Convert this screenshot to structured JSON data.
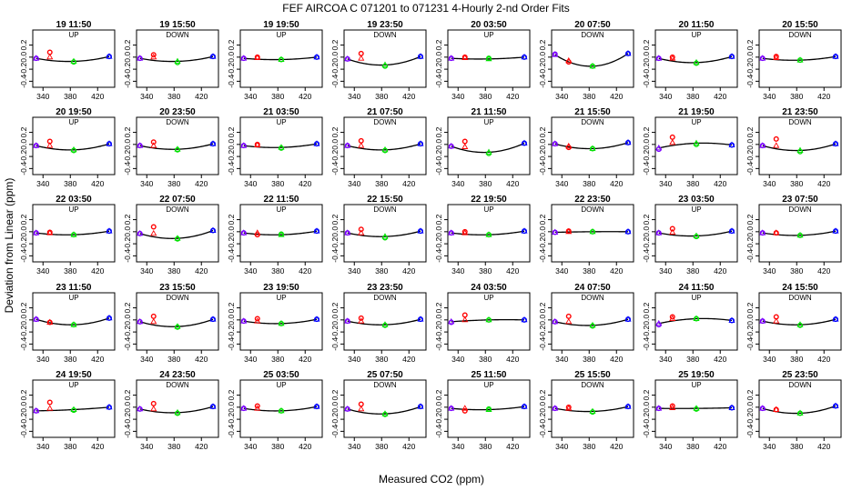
{
  "figure": {
    "title": "FEF   AIRCOA C   071201 to 071231   4-Hourly 2-nd Order Fits",
    "xlabel": "Measured CO2 (ppm)",
    "ylabel": "Deviation from Linear (ppm)"
  },
  "colors": {
    "axis": "#000000",
    "curve": "#000000",
    "pt1": "#7b00ff",
    "pt2": "#ff0000",
    "pt3": "#00e000",
    "pt4": "#0000ff",
    "background": "#ffffff"
  },
  "chart_data": {
    "type": "scatter",
    "grid": false,
    "xlim": [
      325,
      445
    ],
    "ylim": [
      -0.5,
      0.45
    ],
    "x_ticks": [
      340,
      380,
      420
    ],
    "x_tick_labels": [
      "340",
      "380",
      "420"
    ],
    "y_ticks": [
      -0.4,
      -0.2,
      0.0,
      0.2
    ],
    "y_tick_labels": [
      "-0.4",
      "-0.2",
      "0.0",
      "0.2"
    ],
    "std_x": [
      330,
      350,
      385,
      437
    ],
    "panels": [
      {
        "title": "19 11:50",
        "dir": "UP",
        "y": [
          -0.02,
          0.08,
          -0.08,
          0.01
        ],
        "q": [
          -0.02,
          0.0,
          -0.07,
          0.01
        ]
      },
      {
        "title": "19 15:50",
        "dir": "DOWN",
        "y": [
          -0.02,
          0.04,
          -0.09,
          0.01
        ],
        "q": [
          -0.02,
          0.0,
          -0.07,
          0.01
        ]
      },
      {
        "title": "19 19:50",
        "dir": "UP",
        "y": [
          -0.02,
          0.0,
          -0.04,
          0.0
        ],
        "q": [
          -0.02,
          -0.01,
          -0.04,
          0.0
        ]
      },
      {
        "title": "19 23:50",
        "dir": "DOWN",
        "y": [
          -0.03,
          0.06,
          -0.15,
          0.01
        ],
        "q": [
          -0.03,
          -0.02,
          -0.13,
          0.01
        ]
      },
      {
        "title": "20 03:50",
        "dir": "UP",
        "y": [
          -0.02,
          0.0,
          -0.02,
          0.0
        ],
        "q": [
          -0.02,
          -0.01,
          -0.03,
          0.0
        ]
      },
      {
        "title": "20 07:50",
        "dir": "DOWN",
        "y": [
          0.05,
          -0.08,
          -0.15,
          0.06
        ],
        "q": [
          0.04,
          -0.06,
          -0.15,
          0.06
        ]
      },
      {
        "title": "20 11:50",
        "dir": "UP",
        "y": [
          -0.02,
          0.0,
          -0.1,
          0.01
        ],
        "q": [
          -0.02,
          -0.02,
          -0.09,
          0.01
        ]
      },
      {
        "title": "20 15:50",
        "dir": "DOWN",
        "y": [
          -0.02,
          0.01,
          -0.05,
          0.01
        ],
        "q": [
          -0.02,
          -0.01,
          -0.05,
          0.01
        ]
      },
      {
        "title": "20 19:50",
        "dir": "UP",
        "y": [
          -0.02,
          0.05,
          -0.1,
          0.01
        ],
        "q": [
          -0.02,
          -0.02,
          -0.09,
          0.01
        ]
      },
      {
        "title": "20 23:50",
        "dir": "DOWN",
        "y": [
          -0.02,
          0.04,
          -0.09,
          0.01
        ],
        "q": [
          -0.02,
          -0.02,
          -0.08,
          0.01
        ]
      },
      {
        "title": "21 03:50",
        "dir": "UP",
        "y": [
          -0.02,
          0.0,
          -0.06,
          0.01
        ],
        "q": [
          -0.02,
          -0.01,
          -0.05,
          0.01
        ]
      },
      {
        "title": "21 07:50",
        "dir": "DOWN",
        "y": [
          -0.02,
          0.06,
          -0.1,
          0.01
        ],
        "q": [
          -0.02,
          -0.02,
          -0.09,
          0.01
        ]
      },
      {
        "title": "21 11:50",
        "dir": "UP",
        "y": [
          -0.03,
          0.05,
          -0.15,
          0.02
        ],
        "q": [
          -0.03,
          -0.04,
          -0.13,
          0.02
        ]
      },
      {
        "title": "21 15:50",
        "dir": "DOWN",
        "y": [
          0.01,
          -0.05,
          -0.07,
          0.03
        ],
        "q": [
          0.01,
          -0.03,
          -0.07,
          0.03
        ]
      },
      {
        "title": "21 19:50",
        "dir": "UP",
        "y": [
          -0.08,
          0.12,
          0.0,
          -0.01
        ],
        "q": [
          -0.06,
          0.03,
          0.02,
          -0.01
        ]
      },
      {
        "title": "21 23:50",
        "dir": "DOWN",
        "y": [
          -0.02,
          0.09,
          -0.12,
          0.01
        ],
        "q": [
          -0.02,
          -0.02,
          -0.1,
          0.01
        ]
      },
      {
        "title": "22 03:50",
        "dir": "UP",
        "y": [
          -0.02,
          -0.01,
          -0.05,
          0.01
        ],
        "q": [
          -0.02,
          -0.02,
          -0.05,
          0.01
        ]
      },
      {
        "title": "22 07:50",
        "dir": "DOWN",
        "y": [
          -0.03,
          0.08,
          -0.12,
          0.02
        ],
        "q": [
          -0.03,
          -0.03,
          -0.11,
          0.02
        ]
      },
      {
        "title": "22 11:50",
        "dir": "UP",
        "y": [
          -0.02,
          -0.05,
          -0.04,
          0.01
        ],
        "q": [
          -0.02,
          -0.02,
          -0.05,
          0.01
        ]
      },
      {
        "title": "22 15:50",
        "dir": "DOWN",
        "y": [
          -0.02,
          0.04,
          -0.1,
          0.01
        ],
        "q": [
          -0.02,
          -0.02,
          -0.08,
          0.01
        ]
      },
      {
        "title": "22 19:50",
        "dir": "UP",
        "y": [
          -0.02,
          0.0,
          -0.05,
          0.01
        ],
        "q": [
          -0.02,
          -0.02,
          -0.05,
          0.01
        ]
      },
      {
        "title": "22 23:50",
        "dir": "DOWN",
        "y": [
          -0.01,
          0.01,
          0.0,
          0.0
        ],
        "q": [
          -0.01,
          0.0,
          0.0,
          0.0
        ]
      },
      {
        "title": "23 03:50",
        "dir": "UP",
        "y": [
          -0.02,
          0.05,
          -0.08,
          0.01
        ],
        "q": [
          -0.02,
          -0.01,
          -0.07,
          0.01
        ]
      },
      {
        "title": "23 07:50",
        "dir": "DOWN",
        "y": [
          -0.02,
          -0.02,
          -0.06,
          0.01
        ],
        "q": [
          -0.02,
          -0.02,
          -0.06,
          0.01
        ]
      },
      {
        "title": "23 11:50",
        "dir": "UP",
        "y": [
          0.01,
          -0.04,
          -0.08,
          0.03
        ],
        "q": [
          0.01,
          -0.04,
          -0.08,
          0.03
        ]
      },
      {
        "title": "23 15:50",
        "dir": "DOWN",
        "y": [
          -0.03,
          0.06,
          -0.12,
          0.01
        ],
        "q": [
          -0.03,
          -0.03,
          -0.11,
          0.01
        ]
      },
      {
        "title": "23 19:50",
        "dir": "UP",
        "y": [
          -0.02,
          0.02,
          -0.06,
          0.01
        ],
        "q": [
          -0.02,
          -0.02,
          -0.06,
          0.01
        ]
      },
      {
        "title": "23 23:50",
        "dir": "DOWN",
        "y": [
          -0.02,
          0.03,
          -0.09,
          0.01
        ],
        "q": [
          -0.02,
          -0.02,
          -0.08,
          0.01
        ]
      },
      {
        "title": "24 03:50",
        "dir": "UP",
        "y": [
          -0.04,
          0.08,
          0.0,
          0.0
        ],
        "q": [
          -0.03,
          0.0,
          0.0,
          0.0
        ]
      },
      {
        "title": "24 07:50",
        "dir": "DOWN",
        "y": [
          -0.03,
          0.06,
          -0.1,
          0.01
        ],
        "q": [
          -0.03,
          -0.03,
          -0.09,
          0.01
        ]
      },
      {
        "title": "24 11:50",
        "dir": "UP",
        "y": [
          -0.08,
          0.05,
          0.02,
          -0.01
        ],
        "q": [
          -0.06,
          0.02,
          0.02,
          -0.01
        ]
      },
      {
        "title": "24 15:50",
        "dir": "DOWN",
        "y": [
          -0.02,
          0.05,
          -0.09,
          0.01
        ],
        "q": [
          -0.02,
          -0.02,
          -0.08,
          0.01
        ]
      },
      {
        "title": "24 19:50",
        "dir": "UP",
        "y": [
          -0.06,
          0.08,
          -0.05,
          0.0
        ],
        "q": [
          -0.06,
          -0.02,
          -0.04,
          0.0
        ]
      },
      {
        "title": "24 23:50",
        "dir": "DOWN",
        "y": [
          -0.03,
          0.06,
          -0.1,
          0.01
        ],
        "q": [
          -0.03,
          -0.03,
          -0.09,
          0.01
        ]
      },
      {
        "title": "25 03:50",
        "dir": "UP",
        "y": [
          -0.02,
          0.02,
          -0.06,
          0.01
        ],
        "q": [
          -0.02,
          -0.02,
          -0.06,
          0.01
        ]
      },
      {
        "title": "25 07:50",
        "dir": "DOWN",
        "y": [
          -0.03,
          0.05,
          -0.12,
          0.01
        ],
        "q": [
          -0.03,
          -0.03,
          -0.11,
          0.01
        ]
      },
      {
        "title": "25 11:50",
        "dir": "UP",
        "y": [
          -0.02,
          -0.06,
          -0.03,
          0.01
        ],
        "q": [
          -0.02,
          -0.02,
          -0.04,
          0.01
        ]
      },
      {
        "title": "25 15:50",
        "dir": "DOWN",
        "y": [
          -0.02,
          0.0,
          -0.08,
          0.01
        ],
        "q": [
          -0.02,
          -0.02,
          -0.07,
          0.01
        ]
      },
      {
        "title": "25 19:50",
        "dir": "UP",
        "y": [
          -0.02,
          0.02,
          -0.03,
          -0.01
        ],
        "q": [
          -0.02,
          -0.01,
          -0.02,
          -0.01
        ]
      },
      {
        "title": "25 23:50",
        "dir": "DOWN",
        "y": [
          -0.02,
          -0.04,
          -0.1,
          0.02
        ],
        "q": [
          -0.02,
          -0.04,
          -0.1,
          0.02
        ]
      }
    ]
  }
}
